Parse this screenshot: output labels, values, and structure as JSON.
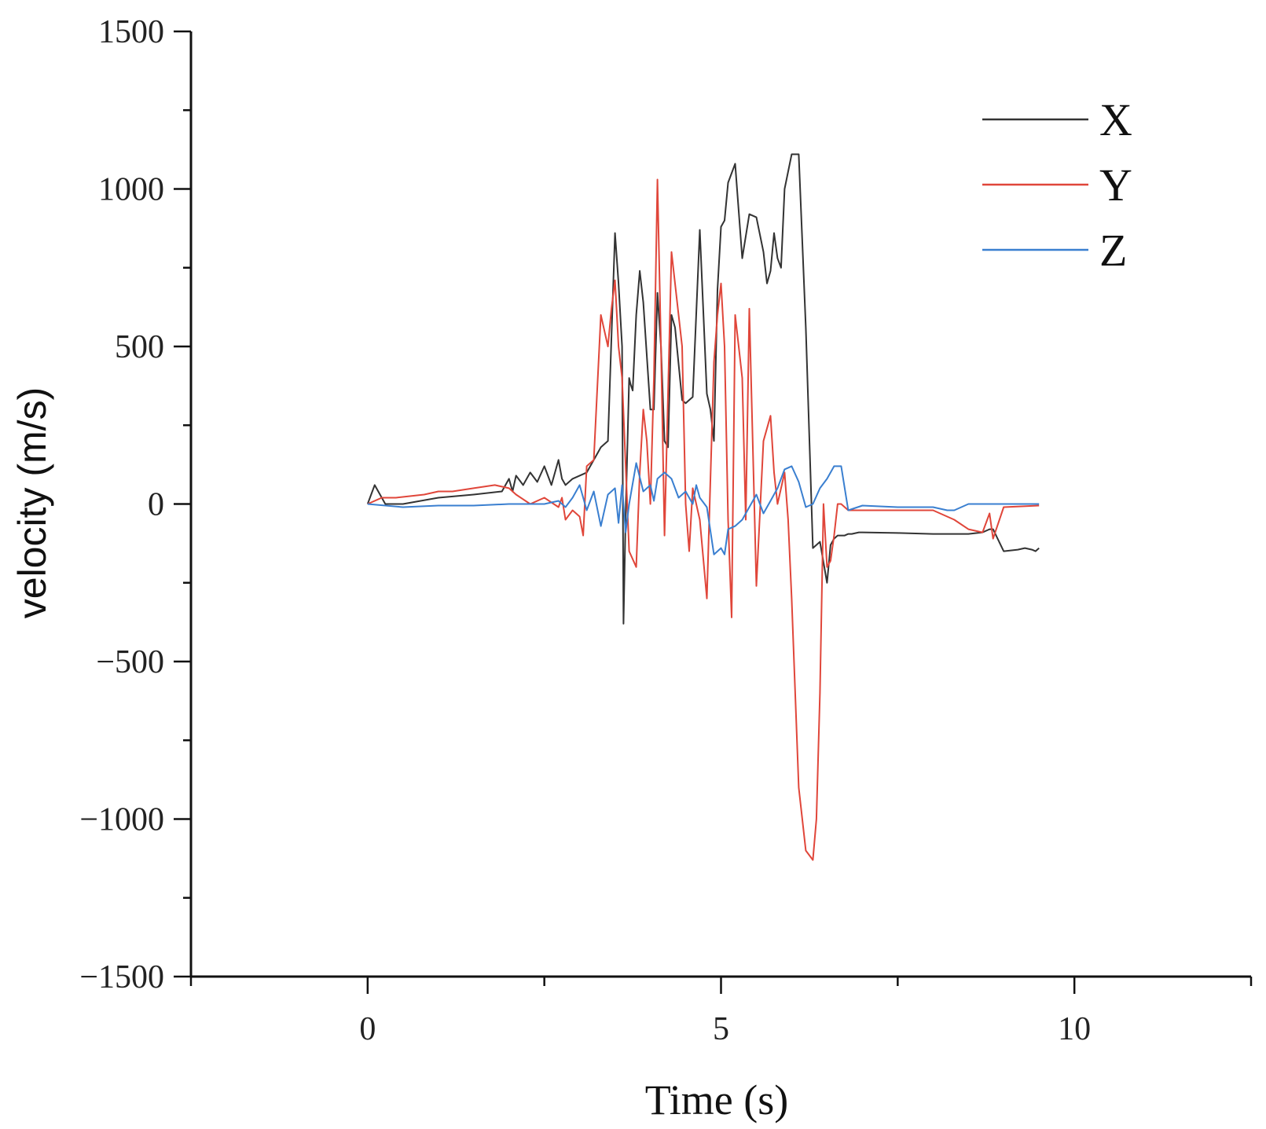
{
  "chart_data": {
    "type": "line",
    "xlabel": "Time (s)",
    "ylabel": "velocity (m/s)",
    "xlim": [
      -2.5,
      12.5
    ],
    "ylim": [
      -1500,
      1500
    ],
    "x_ticks": [
      0,
      5,
      10
    ],
    "x_tick_labels": [
      "0",
      "5",
      "10"
    ],
    "x_minor_ticks": [
      -2.5,
      2.5,
      7.5,
      12.5
    ],
    "y_ticks": [
      1500,
      1000,
      500,
      0,
      -500,
      -1000,
      -1500
    ],
    "y_tick_labels": [
      "1500",
      "1000",
      "500",
      "0",
      "−500",
      "−1000",
      "−1500"
    ],
    "y_minor_ticks": [
      1250,
      750,
      250,
      -250,
      -750,
      -1250
    ],
    "grid": false,
    "legend_position": "top-right",
    "series": [
      {
        "name": "X",
        "color": "#333333",
        "x": [
          0,
          0.1,
          0.25,
          0.5,
          1.0,
          1.5,
          1.9,
          2.0,
          2.05,
          2.1,
          2.2,
          2.3,
          2.4,
          2.5,
          2.6,
          2.7,
          2.75,
          2.8,
          2.9,
          3.1,
          3.3,
          3.4,
          3.5,
          3.55,
          3.6,
          3.62,
          3.65,
          3.7,
          3.72,
          3.75,
          3.8,
          3.85,
          3.9,
          4.0,
          4.05,
          4.1,
          4.15,
          4.2,
          4.25,
          4.3,
          4.35,
          4.45,
          4.5,
          4.6,
          4.7,
          4.8,
          4.85,
          4.9,
          4.95,
          5.0,
          5.05,
          5.1,
          5.2,
          5.3,
          5.4,
          5.5,
          5.6,
          5.65,
          5.7,
          5.75,
          5.8,
          5.85,
          5.9,
          6.0,
          6.1,
          6.2,
          6.3,
          6.4,
          6.5,
          6.55,
          6.6,
          6.65,
          6.7,
          6.75,
          6.8,
          6.85,
          6.95,
          7.0,
          7.5,
          8.0,
          8.5,
          8.7,
          8.8,
          8.85,
          9.0,
          9.2,
          9.3,
          9.4,
          9.45,
          9.5
        ],
        "values": [
          0,
          60,
          0,
          0,
          20,
          30,
          40,
          80,
          40,
          90,
          60,
          100,
          70,
          120,
          60,
          140,
          80,
          60,
          80,
          100,
          180,
          200,
          860,
          700,
          500,
          -380,
          -40,
          400,
          380,
          360,
          600,
          740,
          640,
          300,
          300,
          670,
          500,
          200,
          180,
          600,
          560,
          330,
          320,
          340,
          870,
          350,
          300,
          200,
          680,
          880,
          900,
          1020,
          1080,
          780,
          920,
          910,
          800,
          700,
          740,
          860,
          780,
          750,
          1000,
          1110,
          1110,
          560,
          -140,
          -120,
          -250,
          -130,
          -110,
          -100,
          -100,
          -100,
          -95,
          -95,
          -90,
          -90,
          -92,
          -95,
          -95,
          -90,
          -80,
          -80,
          -150,
          -145,
          -140,
          -145,
          -150,
          -140
        ]
      },
      {
        "name": "Y",
        "color": "#e0463a",
        "x": [
          0,
          0.2,
          0.4,
          0.8,
          1.0,
          1.2,
          1.5,
          1.8,
          2.0,
          2.1,
          2.3,
          2.5,
          2.7,
          2.75,
          2.8,
          2.9,
          3.0,
          3.05,
          3.1,
          3.2,
          3.3,
          3.4,
          3.45,
          3.5,
          3.55,
          3.6,
          3.7,
          3.8,
          3.85,
          3.9,
          3.95,
          4.0,
          4.05,
          4.1,
          4.15,
          4.2,
          4.3,
          4.4,
          4.45,
          4.5,
          4.55,
          4.6,
          4.65,
          4.7,
          4.8,
          4.9,
          4.95,
          5.0,
          5.05,
          5.1,
          5.15,
          5.2,
          5.3,
          5.35,
          5.4,
          5.5,
          5.6,
          5.7,
          5.75,
          5.8,
          5.85,
          5.9,
          5.95,
          6.0,
          6.1,
          6.2,
          6.3,
          6.35,
          6.4,
          6.45,
          6.5,
          6.55,
          6.6,
          6.65,
          6.7,
          6.8,
          6.85,
          6.9,
          7.0,
          7.5,
          8.0,
          8.3,
          8.5,
          8.7,
          8.8,
          8.85,
          9.0,
          9.5
        ],
        "values": [
          0,
          20,
          20,
          30,
          40,
          40,
          50,
          60,
          50,
          30,
          0,
          20,
          -10,
          20,
          -50,
          -20,
          -40,
          -100,
          120,
          140,
          600,
          500,
          620,
          710,
          500,
          400,
          -150,
          -200,
          100,
          300,
          200,
          0,
          400,
          1030,
          500,
          -100,
          800,
          600,
          500,
          0,
          -150,
          50,
          0,
          -50,
          -300,
          450,
          600,
          700,
          500,
          -50,
          -360,
          600,
          400,
          -50,
          620,
          -260,
          200,
          280,
          100,
          0,
          50,
          100,
          -50,
          -300,
          -900,
          -1100,
          -1130,
          -1000,
          -600,
          0,
          -200,
          -180,
          -100,
          0,
          0,
          -20,
          -20,
          -20,
          -20,
          -20,
          -20,
          -50,
          -80,
          -90,
          -30,
          -110,
          -10,
          -5
        ],
        "render": "placeholder"
      },
      {
        "name": "Z",
        "color": "#3a7fd0",
        "x": [
          0,
          0.5,
          1.0,
          1.5,
          2.0,
          2.5,
          2.7,
          2.8,
          2.9,
          3.0,
          3.1,
          3.2,
          3.3,
          3.4,
          3.5,
          3.55,
          3.6,
          3.65,
          3.7,
          3.8,
          3.9,
          4.0,
          4.05,
          4.1,
          4.2,
          4.3,
          4.4,
          4.5,
          4.6,
          4.65,
          4.7,
          4.8,
          4.9,
          5.0,
          5.05,
          5.1,
          5.2,
          5.3,
          5.4,
          5.5,
          5.6,
          5.7,
          5.8,
          5.9,
          6.0,
          6.1,
          6.2,
          6.3,
          6.4,
          6.5,
          6.6,
          6.7,
          6.8,
          7.0,
          7.5,
          8.0,
          8.2,
          8.3,
          8.5,
          9.0,
          9.5
        ],
        "values": [
          0,
          -10,
          -5,
          -5,
          0,
          0,
          10,
          -10,
          20,
          60,
          -20,
          40,
          -70,
          30,
          50,
          -60,
          60,
          -90,
          0,
          130,
          40,
          60,
          10,
          80,
          100,
          80,
          20,
          40,
          0,
          60,
          20,
          -10,
          -160,
          -140,
          -160,
          -80,
          -70,
          -50,
          -10,
          30,
          -30,
          10,
          50,
          110,
          120,
          70,
          -10,
          0,
          50,
          80,
          120,
          120,
          -20,
          -5,
          -10,
          -10,
          -20,
          -20,
          0,
          0,
          0
        ]
      }
    ]
  }
}
